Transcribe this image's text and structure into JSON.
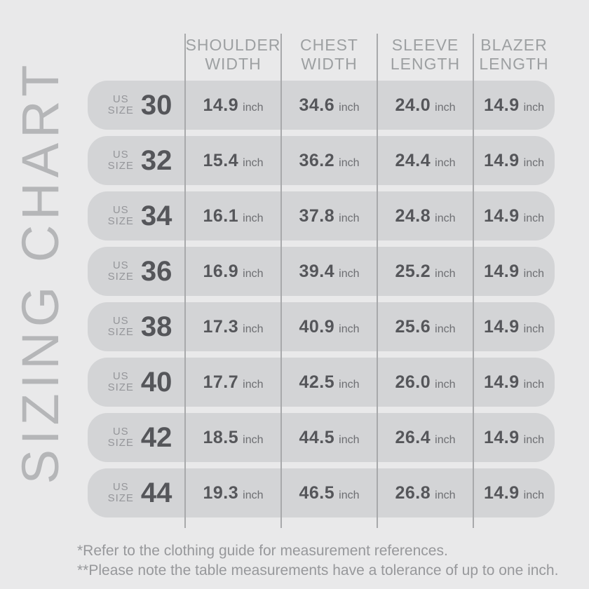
{
  "title": {
    "vertical_text": "SIZING CHART"
  },
  "table": {
    "size_label": [
      "US",
      "SIZE"
    ],
    "unit": "inch",
    "headers": [
      {
        "line1": "SHOULDER",
        "line2": "WIDTH"
      },
      {
        "line1": "CHEST",
        "line2": "WIDTH"
      },
      {
        "line1": "SLEEVE",
        "line2": "LENGTH"
      },
      {
        "line1": "BLAZER",
        "line2": "LENGTH"
      }
    ],
    "rows": [
      {
        "size": "30",
        "shoulder_width": "14.9",
        "chest_width": "34.6",
        "sleeve_length": "24.0",
        "blazer_length": "14.9"
      },
      {
        "size": "32",
        "shoulder_width": "15.4",
        "chest_width": "36.2",
        "sleeve_length": "24.4",
        "blazer_length": "14.9"
      },
      {
        "size": "34",
        "shoulder_width": "16.1",
        "chest_width": "37.8",
        "sleeve_length": "24.8",
        "blazer_length": "14.9"
      },
      {
        "size": "36",
        "shoulder_width": "16.9",
        "chest_width": "39.4",
        "sleeve_length": "25.2",
        "blazer_length": "14.9"
      },
      {
        "size": "38",
        "shoulder_width": "17.3",
        "chest_width": "40.9",
        "sleeve_length": "25.6",
        "blazer_length": "14.9"
      },
      {
        "size": "40",
        "shoulder_width": "17.7",
        "chest_width": "42.5",
        "sleeve_length": "26.0",
        "blazer_length": "14.9"
      },
      {
        "size": "42",
        "shoulder_width": "18.5",
        "chest_width": "44.5",
        "sleeve_length": "26.4",
        "blazer_length": "14.9"
      },
      {
        "size": "44",
        "shoulder_width": "19.3",
        "chest_width": "46.5",
        "sleeve_length": "26.8",
        "blazer_length": "14.9"
      }
    ]
  },
  "footnotes": {
    "line1": "*Refer to the clothing guide for measurement references.",
    "line2": "**Please note the table measurements have a tolerance of up to one inch."
  },
  "chart_data": {
    "type": "table",
    "title": "SIZING CHART",
    "columns": [
      "US SIZE",
      "SHOULDER WIDTH (inch)",
      "CHEST WIDTH (inch)",
      "SLEEVE LENGTH (inch)",
      "BLAZER LENGTH (inch)"
    ],
    "rows": [
      [
        30,
        14.9,
        34.6,
        24.0,
        14.9
      ],
      [
        32,
        15.4,
        36.2,
        24.4,
        14.9
      ],
      [
        34,
        16.1,
        37.8,
        24.8,
        14.9
      ],
      [
        36,
        16.9,
        39.4,
        25.2,
        14.9
      ],
      [
        38,
        17.3,
        40.9,
        25.6,
        14.9
      ],
      [
        40,
        17.7,
        42.5,
        26.0,
        14.9
      ],
      [
        42,
        18.5,
        44.5,
        26.4,
        14.9
      ],
      [
        44,
        19.3,
        46.5,
        26.8,
        14.9
      ]
    ],
    "footnotes": [
      "*Refer to the clothing guide for measurement references.",
      "**Please note the table measurements have a tolerance of up to one inch."
    ]
  },
  "colors": {
    "background": "#e9e9ea",
    "row_pill": "#d3d4d6",
    "divider": "#a8a9ab",
    "heading_text": "#9da0a2",
    "value_text": "#55565a",
    "unit_text": "#6d6e72",
    "muted_text": "#95969a",
    "vertical_title": "#b5b6b8",
    "footnote_text": "#97989b"
  }
}
